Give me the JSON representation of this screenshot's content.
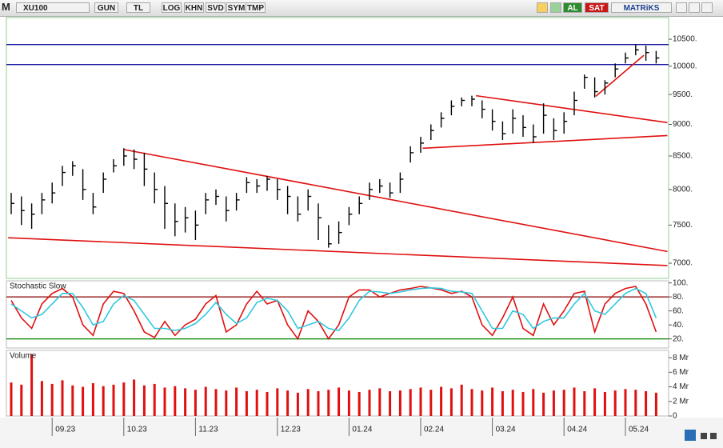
{
  "toolbar": {
    "logo": "M",
    "symbol": "XU100",
    "buttons": [
      "GUN",
      "TL",
      "LOG",
      "KHN",
      "SVD",
      "SYM",
      "TMP"
    ],
    "buy": "AL",
    "sell": "SAT",
    "brand": "MATRiKS"
  },
  "chart_data": [
    {
      "type": "hlc",
      "log": true,
      "ylim": [
        6810,
        10920
      ],
      "yticks": [
        {
          "value": 10500,
          "label": "10500."
        },
        {
          "value": 10000,
          "label": "10000."
        },
        {
          "value": 9500,
          "label": "9500."
        },
        {
          "value": 9000,
          "label": "9000."
        },
        {
          "value": 8500,
          "label": "8500."
        },
        {
          "value": 8000,
          "label": "8000."
        },
        {
          "value": 7500,
          "label": "7500."
        },
        {
          "value": 7000,
          "label": "7000."
        }
      ],
      "color": "#000000",
      "high": [
        7950,
        7900,
        7800,
        7950,
        8100,
        8350,
        8420,
        8300,
        7950,
        8250,
        8450,
        8620,
        8600,
        8550,
        8250,
        8050,
        7800,
        7750,
        7700,
        7950,
        8000,
        7900,
        7950,
        8180,
        8150,
        8200,
        8150,
        8050,
        7900,
        8000,
        7800,
        7500,
        7550,
        7750,
        7900,
        8100,
        8150,
        8100,
        8250,
        8650,
        8800,
        9000,
        9200,
        9400,
        9450,
        9480,
        9400,
        9250,
        9050,
        9250,
        9150,
        9000,
        9350,
        9100,
        9200,
        9550,
        9850,
        9800,
        9750,
        10050,
        10250,
        10400,
        10380,
        10280
      ],
      "low": [
        7650,
        7500,
        7450,
        7650,
        7800,
        8050,
        8200,
        7850,
        7650,
        7950,
        8250,
        8350,
        8300,
        8050,
        7800,
        7450,
        7350,
        7400,
        7300,
        7650,
        7780,
        7550,
        7700,
        7950,
        7950,
        7980,
        7850,
        7650,
        7550,
        7700,
        7300,
        7200,
        7250,
        7500,
        7650,
        7850,
        7950,
        7880,
        7950,
        8400,
        8550,
        8750,
        8950,
        9150,
        9300,
        9300,
        9100,
        8900,
        8750,
        8850,
        8800,
        8700,
        8850,
        8750,
        8850,
        9150,
        9600,
        9450,
        9500,
        9800,
        10050,
        10200,
        10100,
        10050
      ],
      "close": [
        7800,
        7700,
        7650,
        7850,
        7950,
        8250,
        8350,
        8000,
        7750,
        8150,
        8350,
        8500,
        8450,
        8300,
        8000,
        7800,
        7550,
        7600,
        7500,
        7850,
        7900,
        7700,
        7850,
        8100,
        8050,
        8150,
        8000,
        7900,
        7650,
        7900,
        7600,
        7250,
        7400,
        7650,
        7800,
        8000,
        8050,
        7950,
        8150,
        8550,
        8700,
        8900,
        9100,
        9300,
        9400,
        9420,
        9250,
        9050,
        8850,
        9100,
        8950,
        8800,
        9150,
        8900,
        9050,
        9400,
        9800,
        9550,
        9700,
        9950,
        10150,
        10300,
        10250,
        10150
      ],
      "hlines": [
        {
          "value": 10400,
          "color": "#1a1aa0"
        },
        {
          "value": 10030,
          "color": "#1a1aa0"
        }
      ],
      "trendlines": [
        {
          "from": [
            11.0,
            8600
          ],
          "to": [
            64.1,
            7150
          ],
          "color": "#e01010"
        },
        {
          "from": [
            -0.3,
            7330
          ],
          "to": [
            64.1,
            6970
          ],
          "color": "#e01010"
        },
        {
          "from": [
            45.4,
            9480
          ],
          "to": [
            64.1,
            9030
          ],
          "color": "#e01010"
        },
        {
          "from": [
            40.2,
            8620
          ],
          "to": [
            64.1,
            8820
          ],
          "color": "#e01010"
        },
        {
          "from": [
            57.1,
            9470
          ],
          "to": [
            61.8,
            10200
          ],
          "color": "#e01010"
        }
      ]
    },
    {
      "type": "line",
      "title": "Stochastic Slow",
      "ylim": [
        7,
        103
      ],
      "yticks": [
        {
          "value": 100,
          "label": "100."
        },
        {
          "value": 80,
          "label": "80."
        },
        {
          "value": 60,
          "label": "60."
        },
        {
          "value": 40,
          "label": "40."
        },
        {
          "value": 20,
          "label": "20."
        }
      ],
      "hlines": [
        {
          "value": 80,
          "color": "#8b0000"
        },
        {
          "value": 20,
          "color": "#008000"
        }
      ],
      "series": [
        {
          "color": "#e01010",
          "values": [
            75,
            50,
            35,
            70,
            85,
            92,
            80,
            40,
            25,
            70,
            88,
            85,
            60,
            30,
            22,
            45,
            25,
            40,
            48,
            70,
            82,
            30,
            40,
            70,
            88,
            70,
            75,
            40,
            20,
            60,
            45,
            20,
            40,
            80,
            90,
            90,
            80,
            85,
            90,
            92,
            95,
            93,
            90,
            85,
            88,
            80,
            40,
            25,
            50,
            80,
            35,
            25,
            70,
            40,
            60,
            85,
            88,
            30,
            70,
            85,
            92,
            95,
            70,
            30
          ]
        },
        {
          "color": "#30c8e0",
          "values": [
            70,
            60,
            50,
            55,
            70,
            85,
            85,
            65,
            40,
            45,
            70,
            82,
            75,
            55,
            35,
            35,
            32,
            35,
            42,
            55,
            72,
            55,
            42,
            50,
            72,
            78,
            75,
            60,
            35,
            40,
            45,
            35,
            32,
            50,
            75,
            88,
            87,
            85,
            87,
            90,
            92,
            93,
            92,
            88,
            87,
            85,
            60,
            35,
            35,
            60,
            55,
            35,
            45,
            50,
            50,
            70,
            85,
            60,
            55,
            70,
            85,
            92,
            85,
            50
          ]
        }
      ]
    },
    {
      "type": "bar",
      "title": "Volume",
      "ylim": [
        0,
        9
      ],
      "color": "#e01010",
      "yticks": [
        {
          "value": 8,
          "label": "8 Mr"
        },
        {
          "value": 6,
          "label": "6 Mr"
        },
        {
          "value": 4,
          "label": "4 Mr"
        },
        {
          "value": 2,
          "label": "2 Mr"
        },
        0
      ],
      "categories": [
        null,
        null,
        null,
        null,
        "09.23",
        null,
        null,
        null,
        null,
        null,
        null,
        "10.23",
        null,
        null,
        null,
        null,
        null,
        null,
        "11.23",
        null,
        null,
        null,
        null,
        null,
        null,
        null,
        "12.23",
        null,
        null,
        null,
        null,
        null,
        null,
        "01.24",
        null,
        null,
        null,
        null,
        null,
        null,
        "02.24",
        null,
        null,
        null,
        null,
        null,
        null,
        "03.24",
        null,
        null,
        null,
        null,
        null,
        null,
        "04.24",
        null,
        null,
        null,
        null,
        null,
        "05.24",
        null,
        null,
        null
      ],
      "values": [
        4.6,
        4.3,
        8.5,
        4.8,
        4.4,
        4.9,
        4.2,
        4.0,
        4.5,
        4.1,
        4.3,
        4.6,
        5.0,
        4.2,
        4.4,
        3.9,
        4.1,
        3.8,
        3.6,
        4.0,
        3.7,
        3.5,
        3.9,
        3.4,
        3.6,
        3.3,
        3.8,
        3.5,
        3.2,
        3.7,
        3.4,
        3.6,
        3.9,
        3.5,
        3.3,
        3.6,
        3.8,
        3.4,
        3.5,
        3.7,
        3.9,
        3.6,
        4.0,
        3.8,
        4.3,
        3.7,
        3.5,
        3.9,
        3.4,
        3.6,
        3.3,
        3.7,
        3.2,
        3.5,
        3.6,
        3.9,
        3.4,
        3.8,
        3.3,
        3.5,
        3.7,
        3.6,
        3.4,
        3.2
      ]
    }
  ]
}
